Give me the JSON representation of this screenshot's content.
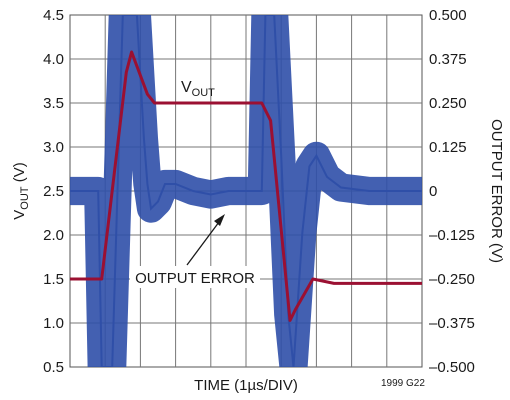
{
  "chart_data": {
    "type": "line",
    "xlabel": "TIME (1µs/DIV)",
    "ylabel_left": "VOUT (V)",
    "ylabel_left_main": "V",
    "ylabel_left_sub": "OUT",
    "ylabel_left_unit": " (V)",
    "ylabel_right": "OUTPUT ERROR (V)",
    "ylim_left": [
      0.5,
      4.5
    ],
    "ylim_right": [
      -0.5,
      0.5
    ],
    "yticks_left": [
      "4.5",
      "4.0",
      "3.5",
      "3.0",
      "2.5",
      "2.0",
      "1.5",
      "1.0",
      "0.5"
    ],
    "yticks_right": [
      "0.500",
      "0.375",
      "0.250",
      "0.125",
      "0",
      "–0.125",
      "–0.250",
      "–0.375",
      "–0.500"
    ],
    "x_divisions": 10,
    "grid": true,
    "note": "1999 G22",
    "colors": {
      "vout": "#9b1032",
      "error": "#2f4fa8",
      "grid": "#777777"
    },
    "annotations": {
      "vout_main": "V",
      "vout_sub": "OUT",
      "error": "OUTPUT ERROR"
    },
    "series": [
      {
        "name": "VOUT",
        "axis": "left",
        "x": [
          0,
          0.9,
          1.6,
          1.75,
          2.2,
          2.4,
          3.0,
          4.0,
          5.45,
          5.7,
          6.25,
          6.4,
          6.9,
          7.5,
          10
        ],
        "values": [
          1.5,
          1.5,
          3.85,
          4.08,
          3.6,
          3.5,
          3.5,
          3.5,
          3.5,
          3.3,
          1.03,
          1.15,
          1.5,
          1.45,
          1.45
        ]
      },
      {
        "name": "OUTPUT ERROR",
        "axis": "right",
        "x": [
          0,
          0.8,
          0.9,
          1.2,
          1.5,
          1.6,
          1.9,
          2.1,
          2.2,
          2.3,
          2.5,
          2.7,
          3.0,
          3.5,
          4.0,
          4.5,
          5.0,
          5.45,
          5.55,
          5.8,
          6.0,
          6.2,
          6.35,
          6.45,
          6.6,
          6.8,
          7.0,
          7.3,
          7.7,
          8.5,
          10
        ],
        "values": [
          0,
          0,
          -0.5,
          -0.5,
          0.5,
          0.5,
          0.5,
          0.15,
          0.02,
          -0.05,
          -0.03,
          0.02,
          0.02,
          0.0,
          -0.01,
          0.0,
          0.0,
          0.0,
          0.5,
          0.5,
          0.1,
          -0.35,
          -0.5,
          -0.35,
          -0.12,
          0.07,
          0.1,
          0.04,
          0.01,
          0.0,
          0.0
        ],
        "noise_band": 0.04
      }
    ]
  }
}
